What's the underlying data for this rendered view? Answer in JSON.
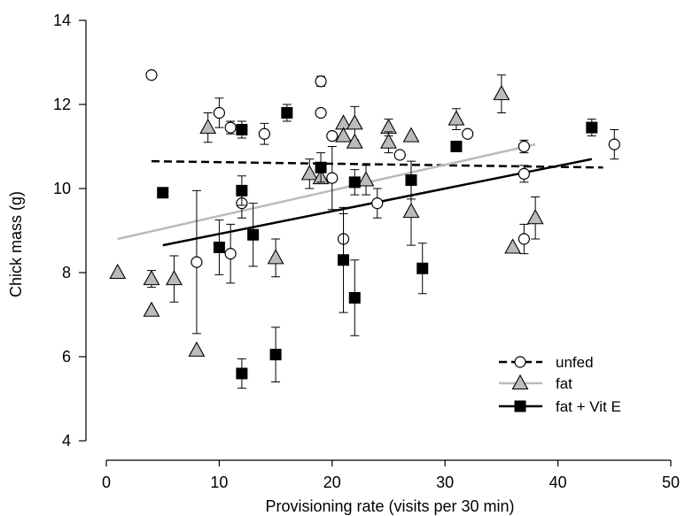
{
  "chart_data": {
    "type": "scatter",
    "xlabel": "Provisioning rate (visits per 30 min)",
    "ylabel": "Chick mass (g)",
    "xlim": [
      0,
      50
    ],
    "ylim": [
      4,
      14
    ],
    "xticks": [
      0,
      10,
      20,
      30,
      40,
      50
    ],
    "yticks": [
      4,
      6,
      8,
      10,
      12,
      14
    ],
    "xtick_labels": [
      "0",
      "10",
      "20",
      "30",
      "40",
      "50"
    ],
    "ytick_labels": [
      "4",
      "6",
      "8",
      "10",
      "12",
      "14"
    ],
    "grid": false,
    "legend_position": "bottom-right",
    "series": [
      {
        "name": "unfed",
        "marker": "circle",
        "marker_fill": "#ffffff",
        "line_color": "#000000",
        "line_style": "dashed",
        "points": [
          {
            "x": 4,
            "y": 12.7
          },
          {
            "x": 8,
            "y": 8.25,
            "err": 1.7
          },
          {
            "x": 10,
            "y": 11.8,
            "err": 0.35
          },
          {
            "x": 11,
            "y": 11.45,
            "err": 0.15
          },
          {
            "x": 11,
            "y": 8.45,
            "err": 0.7
          },
          {
            "x": 12,
            "y": 9.65,
            "err": 0.35
          },
          {
            "x": 14,
            "y": 11.3,
            "err": 0.25
          },
          {
            "x": 19,
            "y": 12.55,
            "err": 0.12
          },
          {
            "x": 19,
            "y": 11.8
          },
          {
            "x": 20,
            "y": 11.25
          },
          {
            "x": 20,
            "y": 10.25,
            "err": 0.75
          },
          {
            "x": 21,
            "y": 8.8,
            "err": 0.6
          },
          {
            "x": 24,
            "y": 9.65,
            "err": 0.35
          },
          {
            "x": 26,
            "y": 10.8
          },
          {
            "x": 32,
            "y": 11.3
          },
          {
            "x": 37,
            "y": 11.0,
            "err": 0.15
          },
          {
            "x": 37,
            "y": 10.35,
            "err": 0.2
          },
          {
            "x": 37,
            "y": 8.8,
            "err": 0.35
          },
          {
            "x": 45,
            "y": 11.05,
            "err": 0.35
          }
        ],
        "fit": {
          "x0": 4,
          "y0": 10.65,
          "x1": 44,
          "y1": 10.5
        }
      },
      {
        "name": "fat",
        "marker": "triangle",
        "marker_fill": "#bbbbbb",
        "line_color": "#bbbbbb",
        "line_style": "solid",
        "points": [
          {
            "x": 1,
            "y": 8.0
          },
          {
            "x": 4,
            "y": 7.85,
            "err": 0.2
          },
          {
            "x": 4,
            "y": 7.1
          },
          {
            "x": 6,
            "y": 7.85,
            "err": 0.55
          },
          {
            "x": 8,
            "y": 6.15
          },
          {
            "x": 9,
            "y": 11.45,
            "err": 0.35
          },
          {
            "x": 15,
            "y": 8.35,
            "err": 0.45
          },
          {
            "x": 18,
            "y": 10.35,
            "err": 0.35
          },
          {
            "x": 19,
            "y": 10.25
          },
          {
            "x": 21,
            "y": 11.55
          },
          {
            "x": 21,
            "y": 11.25
          },
          {
            "x": 22,
            "y": 11.55,
            "err": 0.4
          },
          {
            "x": 22,
            "y": 11.1
          },
          {
            "x": 23,
            "y": 10.2,
            "err": 0.35
          },
          {
            "x": 25,
            "y": 11.45,
            "err": 0.2
          },
          {
            "x": 25,
            "y": 11.1,
            "err": 0.25
          },
          {
            "x": 27,
            "y": 11.25
          },
          {
            "x": 27,
            "y": 9.45,
            "err": 0.8
          },
          {
            "x": 31,
            "y": 11.65,
            "err": 0.25
          },
          {
            "x": 35,
            "y": 12.25,
            "err": 0.45
          },
          {
            "x": 36,
            "y": 8.6
          },
          {
            "x": 38,
            "y": 9.3,
            "err": 0.5
          }
        ],
        "fit": {
          "x0": 1,
          "y0": 8.8,
          "x1": 38,
          "y1": 11.05
        }
      },
      {
        "name": "fat + Vit E",
        "marker": "square",
        "marker_fill": "#000000",
        "line_color": "#000000",
        "line_style": "solid",
        "points": [
          {
            "x": 5,
            "y": 9.9
          },
          {
            "x": 10,
            "y": 8.6,
            "err": 0.65
          },
          {
            "x": 12,
            "y": 11.4,
            "err": 0.2
          },
          {
            "x": 12,
            "y": 9.95,
            "err": 0.35
          },
          {
            "x": 12,
            "y": 5.6,
            "err": 0.35
          },
          {
            "x": 13,
            "y": 8.9,
            "err": 0.75
          },
          {
            "x": 15,
            "y": 6.05,
            "err": 0.65
          },
          {
            "x": 16,
            "y": 11.8,
            "err": 0.2
          },
          {
            "x": 19,
            "y": 10.5,
            "err": 0.35
          },
          {
            "x": 21,
            "y": 8.3,
            "err": 1.25
          },
          {
            "x": 22,
            "y": 10.15,
            "err": 0.3
          },
          {
            "x": 22,
            "y": 7.4,
            "err": 0.9
          },
          {
            "x": 27,
            "y": 10.2,
            "err": 0.45
          },
          {
            "x": 28,
            "y": 8.1,
            "err": 0.6
          },
          {
            "x": 31,
            "y": 11.0
          },
          {
            "x": 43,
            "y": 11.45,
            "err": 0.2
          }
        ],
        "fit": {
          "x0": 5,
          "y0": 8.65,
          "x1": 43,
          "y1": 10.7
        }
      }
    ]
  }
}
